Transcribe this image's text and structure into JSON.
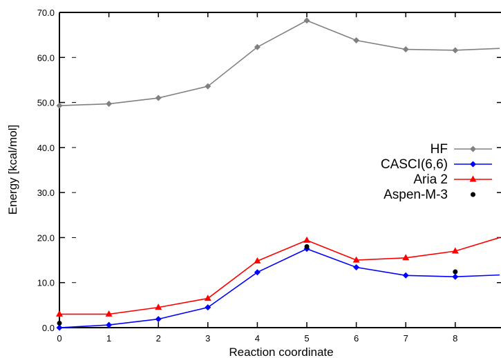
{
  "chart_data": {
    "type": "line",
    "title": "",
    "xlabel": "Reaction coordinate",
    "ylabel": "Energy [kcal/mol]",
    "xlim": [
      0,
      9
    ],
    "ylim": [
      0,
      70
    ],
    "x_ticks": [
      "0",
      "1",
      "2",
      "3",
      "4",
      "5",
      "6",
      "7",
      "8"
    ],
    "y_ticks": [
      "0.0",
      "10.0",
      "20.0",
      "30.0",
      "40.0",
      "50.0",
      "60.0",
      "70.0"
    ],
    "grid": false,
    "legend_position": "center-right",
    "series": [
      {
        "name": "HF",
        "color": "#808080",
        "marker": "diamond",
        "x": [
          0,
          1,
          2,
          3,
          4,
          5,
          6,
          7,
          8,
          9
        ],
        "y": [
          49.3,
          49.7,
          51.0,
          53.6,
          62.3,
          68.2,
          63.8,
          61.8,
          61.6,
          62.0
        ]
      },
      {
        "name": "CASCI(6,6)",
        "color": "#0000ff",
        "marker": "diamond",
        "x": [
          0,
          1,
          2,
          3,
          4,
          5,
          6,
          7,
          8,
          9
        ],
        "y": [
          0.0,
          0.6,
          1.9,
          4.5,
          12.3,
          17.5,
          13.4,
          11.6,
          11.3,
          11.7
        ]
      },
      {
        "name": "Aria 2",
        "color": "#ff0000",
        "marker": "triangle",
        "x": [
          0,
          1,
          2,
          3,
          4,
          5,
          6,
          7,
          8,
          9
        ],
        "y": [
          3.0,
          3.0,
          4.5,
          6.5,
          14.8,
          19.4,
          15.0,
          15.5,
          17.0,
          20.0
        ]
      },
      {
        "name": "Aspen-M-3",
        "color": "#000000",
        "marker": "circle",
        "line": false,
        "x": [
          0,
          5,
          8
        ],
        "y": [
          1.0,
          18.0,
          12.4
        ]
      }
    ]
  }
}
